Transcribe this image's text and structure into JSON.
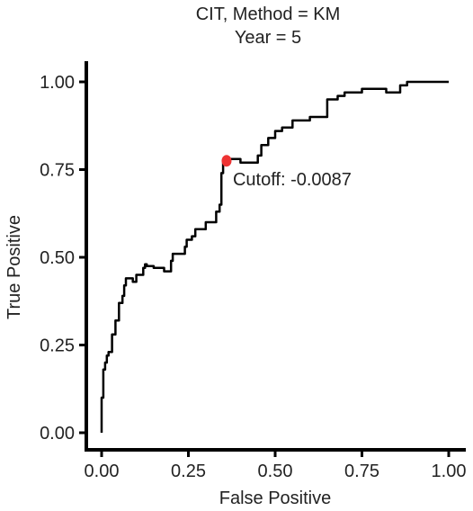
{
  "chart_data": {
    "type": "line",
    "title": "CIT, Method = KM",
    "subtitle": "Year = 5",
    "xlabel": "False Positive",
    "ylabel": "True Positive",
    "xlim": [
      0,
      1
    ],
    "ylim": [
      0,
      1
    ],
    "x_ticks": [
      "0.00",
      "0.25",
      "0.50",
      "0.75",
      "1.00"
    ],
    "y_ticks": [
      "0.00",
      "0.25",
      "0.50",
      "0.75",
      "1.00"
    ],
    "grid": false,
    "legend": "none",
    "line_color": "#000000",
    "series": [
      {
        "x": [
          0,
          0.005,
          0.01,
          0.015,
          0.02,
          0.03,
          0.04,
          0.05,
          0.06,
          0.065,
          0.07,
          0.075,
          0.09,
          0.1,
          0.12,
          0.125,
          0.13,
          0.15,
          0.16,
          0.18,
          0.2,
          0.205,
          0.22,
          0.23,
          0.24,
          0.245,
          0.26,
          0.27,
          0.28,
          0.3,
          0.31,
          0.33,
          0.34,
          0.345,
          0.35,
          0.36,
          0.37,
          0.39,
          0.4,
          0.42,
          0.45,
          0.46,
          0.48,
          0.5,
          0.52,
          0.55,
          0.57,
          0.6,
          0.62,
          0.65,
          0.68,
          0.7,
          0.72,
          0.75,
          0.78,
          0.8,
          0.82,
          0.85,
          0.86,
          0.88,
          0.9,
          0.95,
          1.0
        ],
        "y": [
          0,
          0.1,
          0.18,
          0.2,
          0.22,
          0.23,
          0.28,
          0.32,
          0.37,
          0.39,
          0.42,
          0.44,
          0.44,
          0.43,
          0.45,
          0.47,
          0.48,
          0.475,
          0.47,
          0.47,
          0.46,
          0.49,
          0.51,
          0.51,
          0.51,
          0.53,
          0.55,
          0.56,
          0.58,
          0.58,
          0.6,
          0.6,
          0.63,
          0.65,
          0.74,
          0.77,
          0.77,
          0.78,
          0.78,
          0.77,
          0.77,
          0.79,
          0.82,
          0.84,
          0.86,
          0.87,
          0.89,
          0.89,
          0.9,
          0.9,
          0.95,
          0.96,
          0.97,
          0.97,
          0.98,
          0.98,
          0.98,
          0.97,
          0.97,
          0.99,
          1.0,
          1.0,
          1.0
        ]
      }
    ],
    "cutoff_point": {
      "x": 0.36,
      "y": 0.775,
      "color": "#ee3333"
    },
    "annotation": "Cutoff: -0.0087"
  }
}
